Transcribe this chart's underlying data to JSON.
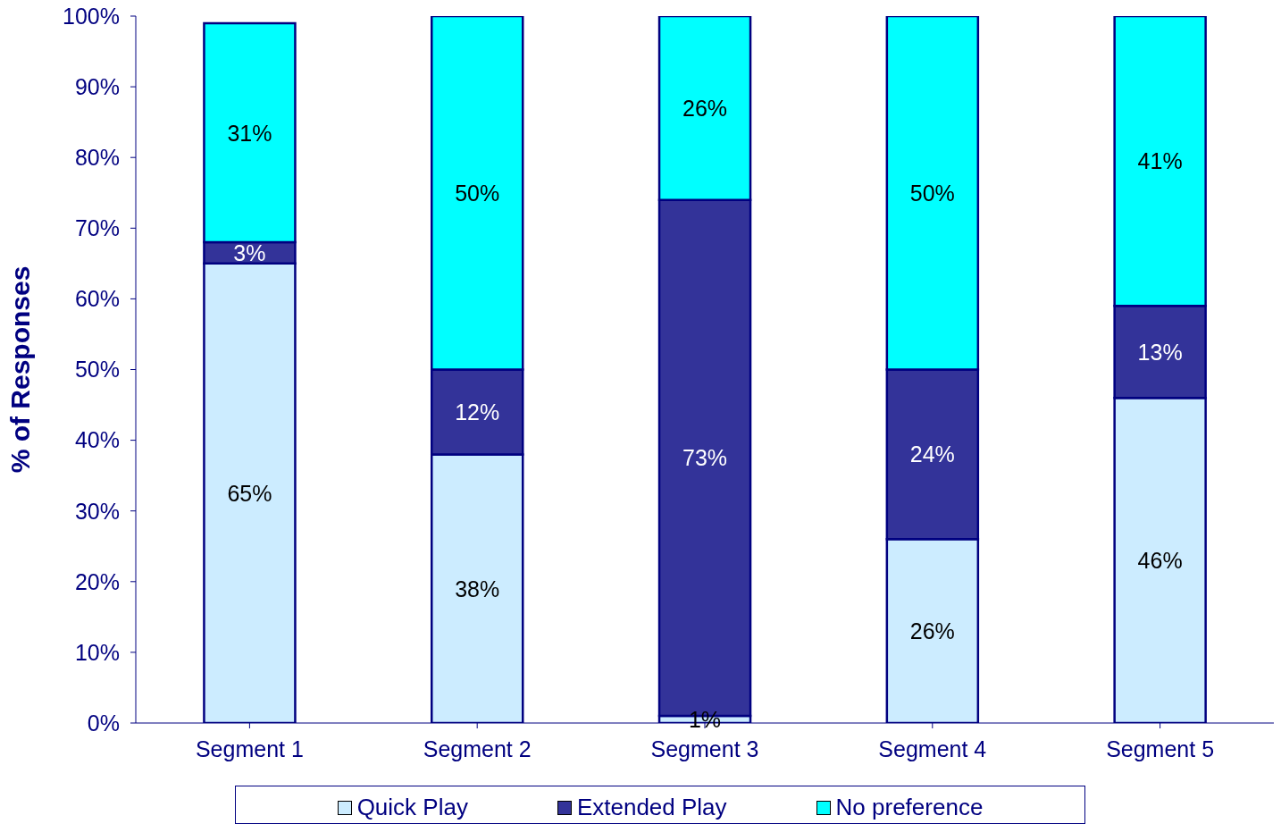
{
  "chart_data": {
    "type": "bar",
    "stacked": true,
    "ylabel": "% of Responses",
    "categories": [
      "Segment 1",
      "Segment 2",
      "Segment 3",
      "Segment 4",
      "Segment 5"
    ],
    "series": [
      {
        "name": "Quick Play",
        "color": "#ccecff",
        "values": [
          65,
          38,
          1,
          26,
          46
        ],
        "value_labels": [
          "65%",
          "38%",
          "1%",
          "26%",
          "46%"
        ]
      },
      {
        "name": "Extended Play",
        "color": "#333399",
        "values": [
          3,
          12,
          73,
          24,
          13
        ],
        "value_labels": [
          "3%",
          "12%",
          "73%",
          "24%",
          "13%"
        ]
      },
      {
        "name": "No preference",
        "color": "#00ffff",
        "values": [
          31,
          50,
          26,
          50,
          41
        ],
        "value_labels": [
          "31%",
          "50%",
          "26%",
          "50%",
          "41%"
        ]
      }
    ],
    "ylim": [
      0,
      100
    ],
    "yticks": [
      {
        "value": 0,
        "label": "0%"
      },
      {
        "value": 10,
        "label": "10%"
      },
      {
        "value": 20,
        "label": "20%"
      },
      {
        "value": 30,
        "label": "30%"
      },
      {
        "value": 40,
        "label": "40%"
      },
      {
        "value": 50,
        "label": "50%"
      },
      {
        "value": 60,
        "label": "60%"
      },
      {
        "value": 70,
        "label": "70%"
      },
      {
        "value": 80,
        "label": "80%"
      },
      {
        "value": 90,
        "label": "90%"
      },
      {
        "value": 100,
        "label": "100%"
      }
    ],
    "grid": false,
    "legend": "bottom"
  }
}
